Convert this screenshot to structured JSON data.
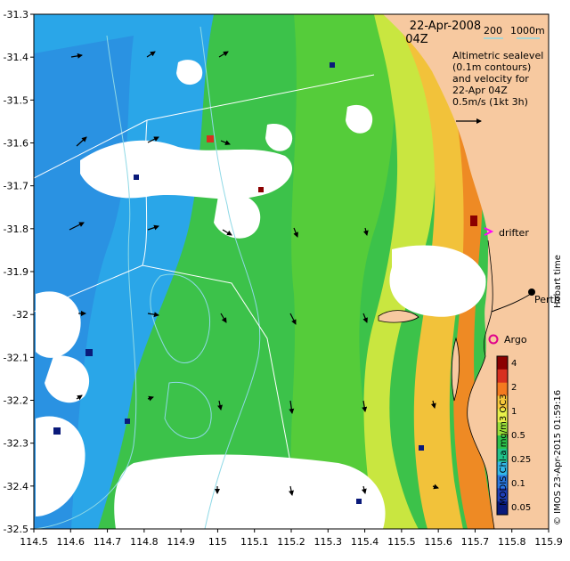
{
  "header": {
    "date": "22-Apr-2008",
    "time": "04Z",
    "scale_label_1": "200",
    "scale_label_2": "1000m"
  },
  "description": {
    "line1": "Altimetric sealevel",
    "line2": "(0.1m contours)",
    "line3": "and velocity for",
    "line4": "22-Apr 04Z",
    "line5": "0.5m/s (1kt 3h)"
  },
  "places": {
    "drifter": "drifter",
    "perth": "Perth",
    "argo": "Argo"
  },
  "credits": {
    "hobart": "Hobart time",
    "imos": "© IMOS 23-Apr-2015 01:59:16",
    "product": "MODIS Chl-a mg/m3 OC3"
  },
  "colorbar": {
    "labels": [
      "4",
      "2",
      "1",
      "0.5",
      "0.25",
      "0.1",
      "0.05"
    ],
    "colors": [
      "#8b0000",
      "#d7301f",
      "#f47a1f",
      "#f8c83c",
      "#e8f04a",
      "#9be03a",
      "#2ec24a",
      "#22c38a",
      "#33b8e8",
      "#2a78e0",
      "#1f3fb8",
      "#0a1a7a"
    ]
  },
  "axes": {
    "x_ticks": [
      "114.5",
      "114.6",
      "114.7",
      "114.8",
      "114.9",
      "115",
      "115.1",
      "115.2",
      "115.3",
      "115.4",
      "115.5",
      "115.6",
      "115.7",
      "115.8",
      "115.9"
    ],
    "y_ticks": [
      "-31.3",
      "-31.4",
      "-31.5",
      "-31.6",
      "-31.7",
      "-31.8",
      "-31.9",
      "-32",
      "-32.1",
      "-32.2",
      "-32.3",
      "-32.4",
      "-32.5"
    ],
    "x_range": [
      114.5,
      115.9
    ],
    "y_range": [
      -32.5,
      -31.3
    ]
  },
  "colors": {
    "land": "#f7c9a0",
    "contour": "#8fd9e6",
    "track": "#ffffff",
    "drifter_marker": "#ff00ff",
    "argo_marker": "#e0008a"
  }
}
